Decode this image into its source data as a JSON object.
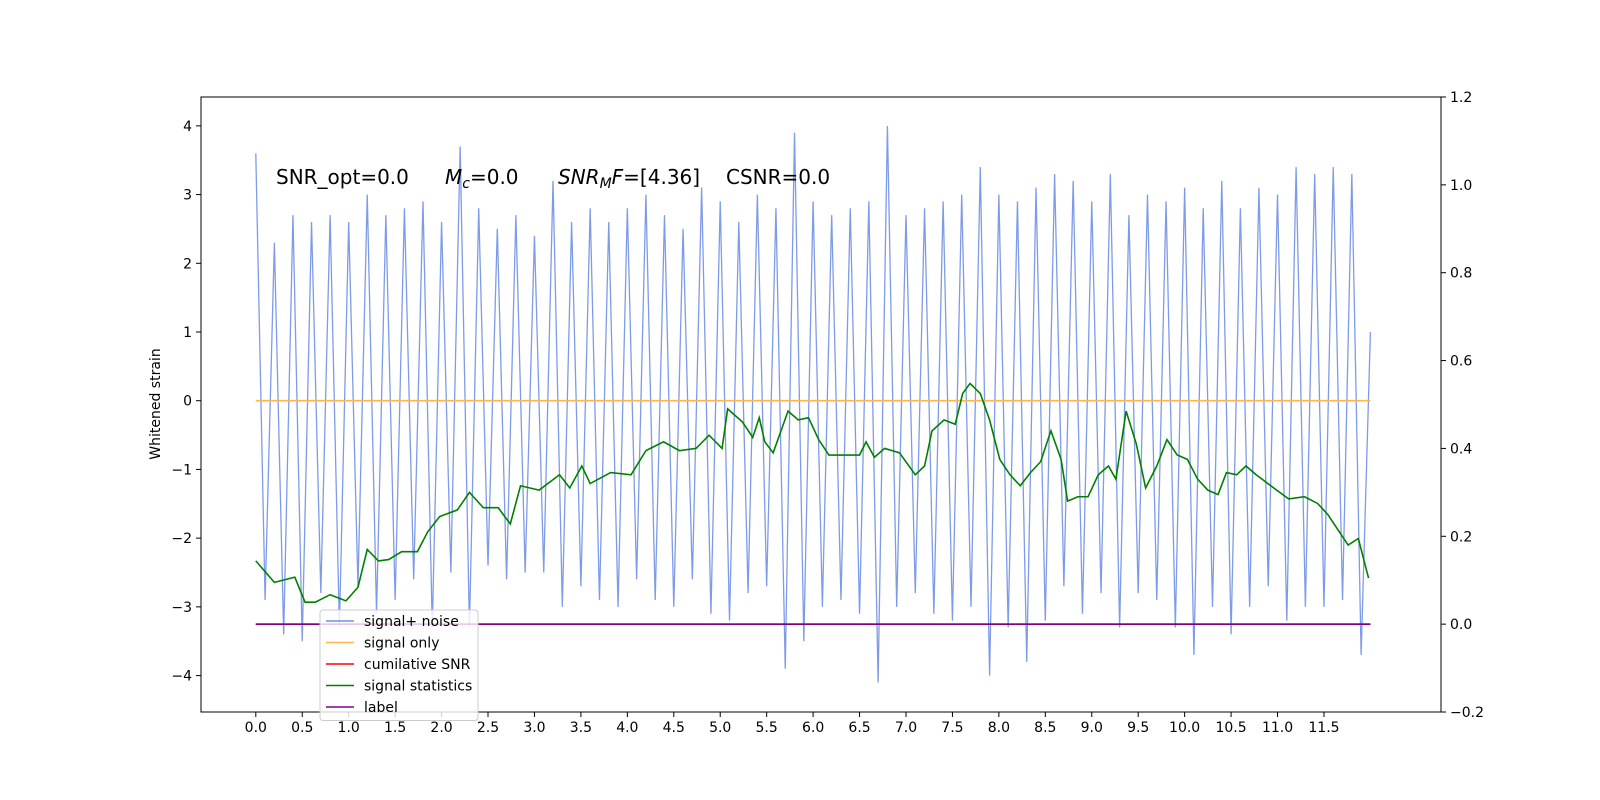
{
  "chart_data": {
    "type": "line",
    "ylabel": "Whitened strain",
    "annotation": {
      "snr_opt": "SNR_opt=0.0",
      "mc": [
        "M",
        "c",
        "=0.0"
      ],
      "snr_mf": [
        "SNR",
        "M",
        "F",
        "=[4.36]"
      ],
      "csnr": "CSNR=0.0"
    },
    "xlim": [
      -0.59,
      12.76
    ],
    "ylim": [
      -4.53,
      4.42
    ],
    "y2lim": [
      -0.2,
      1.2
    ],
    "xticks": [
      {
        "value": 0,
        "label": "0.0"
      },
      {
        "value": 0.5,
        "label": "0.5"
      },
      {
        "value": 1,
        "label": "1.0"
      },
      {
        "value": 1.5,
        "label": "1.5"
      },
      {
        "value": 2,
        "label": "2.0"
      },
      {
        "value": 2.5,
        "label": "2.5"
      },
      {
        "value": 3,
        "label": "3.0"
      },
      {
        "value": 3.5,
        "label": "3.5"
      },
      {
        "value": 4,
        "label": "4.0"
      },
      {
        "value": 4.5,
        "label": "4.5"
      },
      {
        "value": 5,
        "label": "5.0"
      },
      {
        "value": 5.5,
        "label": "5.5"
      },
      {
        "value": 6,
        "label": "6.0"
      },
      {
        "value": 6.5,
        "label": "6.5"
      },
      {
        "value": 7,
        "label": "7.0"
      },
      {
        "value": 7.5,
        "label": "7.5"
      },
      {
        "value": 8,
        "label": "8.0"
      },
      {
        "value": 8.5,
        "label": "8.5"
      },
      {
        "value": 9,
        "label": "9.0"
      },
      {
        "value": 9.5,
        "label": "9.5"
      },
      {
        "value": 10,
        "label": "10.0"
      },
      {
        "value": 10.5,
        "label": "10.5"
      },
      {
        "value": 11,
        "label": "11.0"
      },
      {
        "value": 11.5,
        "label": "11.5"
      }
    ],
    "yticks": [
      {
        "value": -4,
        "label": "−4"
      },
      {
        "value": -3,
        "label": "−3"
      },
      {
        "value": -2,
        "label": "−2"
      },
      {
        "value": -1,
        "label": "−1"
      },
      0,
      1,
      2,
      3,
      4
    ],
    "y2ticks": [
      {
        "value": -0.2,
        "label": "−0.2"
      },
      {
        "value": 0,
        "label": "0.0"
      },
      0.2,
      0.4,
      0.6,
      0.8,
      {
        "value": 1,
        "label": "1.0"
      },
      1.2
    ],
    "legend": "lower left",
    "series": [
      {
        "name": "signal+ noise",
        "color": "#7090e6",
        "x": [
          0,
          0.1,
          0.2,
          0.3,
          0.4,
          0.5,
          0.6,
          0.7,
          0.8,
          0.9,
          1,
          1.1,
          1.2,
          1.3,
          1.4,
          1.5,
          1.6,
          1.7,
          1.8,
          1.9,
          2,
          2.1,
          2.2,
          2.3,
          2.4,
          2.5,
          2.6,
          2.7,
          2.8,
          2.9,
          3,
          3.1,
          3.2,
          3.3,
          3.4,
          3.5,
          3.6,
          3.7,
          3.8,
          3.9,
          4,
          4.1,
          4.2,
          4.3,
          4.4,
          4.5,
          4.6,
          4.7,
          4.8,
          4.9,
          5,
          5.1,
          5.2,
          5.3,
          5.4,
          5.5,
          5.6,
          5.7,
          5.8,
          5.9,
          6,
          6.1,
          6.2,
          6.3,
          6.4,
          6.5,
          6.6,
          6.7,
          6.8,
          6.9,
          7,
          7.1,
          7.2,
          7.3,
          7.4,
          7.5,
          7.6,
          7.7,
          7.8,
          7.9,
          8,
          8.1,
          8.2,
          8.3,
          8.4,
          8.5,
          8.6,
          8.7,
          8.8,
          8.9,
          9,
          9.1,
          9.2,
          9.3,
          9.4,
          9.5,
          9.6,
          9.7,
          9.8,
          9.9,
          10,
          10.1,
          10.2,
          10.3,
          10.4,
          10.5,
          10.6,
          10.7,
          10.8,
          10.9,
          11,
          11.1,
          11.2,
          11.3,
          11.4,
          11.5,
          11.6,
          11.7,
          11.8,
          11.9,
          12
        ],
        "values": [
          3.6,
          -2.9,
          2.3,
          -3.4,
          2.7,
          -3.5,
          2.6,
          -2.8,
          2.7,
          -3.3,
          2.6,
          -2.7,
          3.0,
          -3.1,
          2.7,
          -2.9,
          2.8,
          -2.6,
          2.9,
          -3.3,
          2.6,
          -2.5,
          3.7,
          -3.3,
          2.8,
          -2.4,
          2.5,
          -2.6,
          2.7,
          -2.5,
          2.4,
          -2.5,
          3.2,
          -3.0,
          2.6,
          -2.7,
          2.8,
          -2.9,
          2.6,
          -3.0,
          2.8,
          -2.6,
          3.0,
          -2.9,
          2.7,
          -3.0,
          2.5,
          -2.6,
          3.1,
          -3.1,
          2.9,
          -3.2,
          2.6,
          -2.8,
          3.0,
          -2.7,
          2.8,
          -3.9,
          3.9,
          -3.5,
          2.9,
          -3.0,
          2.7,
          -2.9,
          2.8,
          -3.1,
          2.9,
          -4.1,
          4.0,
          -3.0,
          2.7,
          -2.8,
          2.8,
          -3.1,
          2.9,
          -3.2,
          3.0,
          -3.0,
          3.4,
          -4.0,
          3.0,
          -3.3,
          2.9,
          -3.8,
          3.1,
          -3.2,
          3.3,
          -2.7,
          3.2,
          -3.1,
          2.9,
          -2.8,
          3.3,
          -3.3,
          2.7,
          -2.8,
          3.0,
          -2.9,
          2.9,
          -3.3,
          3.1,
          -3.7,
          2.8,
          -3.0,
          3.2,
          -3.4,
          2.8,
          -3.0,
          3.1,
          -2.7,
          3.0,
          -3.2,
          3.4,
          -3.0,
          3.3,
          -3.0,
          3.4,
          -2.9,
          3.3,
          -3.7,
          1.0
        ]
      },
      {
        "name": "signal only",
        "color": "#ffb74d",
        "x": [
          0,
          12
        ],
        "values": [
          0,
          0
        ]
      },
      {
        "name": "cumilative SNR",
        "color": "#ff0000",
        "axis": "y2",
        "x": [
          0,
          12
        ],
        "values": [
          0,
          0
        ]
      },
      {
        "name": "signal statistics",
        "color": "#008000",
        "axis": "y2",
        "x": [
          0,
          0.2,
          0.42,
          0.53,
          0.64,
          0.8,
          0.97,
          1.1,
          1.2,
          1.32,
          1.43,
          1.57,
          1.74,
          1.85,
          1.98,
          2.17,
          2.3,
          2.45,
          2.61,
          2.74,
          2.85,
          3.05,
          3.27,
          3.38,
          3.51,
          3.6,
          3.82,
          4.04,
          4.2,
          4.39,
          4.56,
          4.74,
          4.88,
          5.02,
          5.08,
          5.24,
          5.35,
          5.42,
          5.48,
          5.57,
          5.73,
          5.84,
          5.95,
          6.06,
          6.17,
          6.33,
          6.5,
          6.57,
          6.66,
          6.77,
          6.93,
          7.1,
          7.2,
          7.28,
          7.41,
          7.53,
          7.61,
          7.69,
          7.8,
          7.9,
          8.01,
          8.12,
          8.23,
          8.34,
          8.45,
          8.56,
          8.67,
          8.74,
          8.85,
          8.96,
          9.07,
          9.18,
          9.26,
          9.37,
          9.48,
          9.58,
          9.7,
          9.81,
          9.92,
          10.03,
          10.14,
          10.25,
          10.36,
          10.45,
          10.56,
          10.66,
          10.77,
          10.96,
          11.12,
          11.29,
          11.43,
          11.54,
          11.65,
          11.76,
          11.87,
          11.98
        ],
        "values": [
          0.144,
          0.095,
          0.107,
          0.05,
          0.05,
          0.067,
          0.053,
          0.084,
          0.17,
          0.144,
          0.147,
          0.165,
          0.165,
          0.21,
          0.245,
          0.26,
          0.3,
          0.265,
          0.265,
          0.228,
          0.315,
          0.305,
          0.34,
          0.31,
          0.36,
          0.32,
          0.345,
          0.34,
          0.395,
          0.415,
          0.395,
          0.4,
          0.43,
          0.4,
          0.49,
          0.46,
          0.425,
          0.47,
          0.415,
          0.39,
          0.485,
          0.465,
          0.47,
          0.42,
          0.385,
          0.385,
          0.385,
          0.415,
          0.38,
          0.4,
          0.39,
          0.34,
          0.36,
          0.44,
          0.465,
          0.455,
          0.525,
          0.548,
          0.525,
          0.465,
          0.375,
          0.34,
          0.315,
          0.345,
          0.37,
          0.44,
          0.375,
          0.28,
          0.29,
          0.29,
          0.34,
          0.36,
          0.33,
          0.485,
          0.41,
          0.31,
          0.36,
          0.42,
          0.385,
          0.375,
          0.33,
          0.305,
          0.295,
          0.345,
          0.34,
          0.36,
          0.34,
          0.31,
          0.285,
          0.29,
          0.275,
          0.25,
          0.215,
          0.18,
          0.195,
          0.105
        ]
      },
      {
        "name": "label",
        "color": "#800080",
        "axis": "y2",
        "x": [
          0,
          12
        ],
        "values": [
          0,
          0
        ]
      }
    ]
  }
}
